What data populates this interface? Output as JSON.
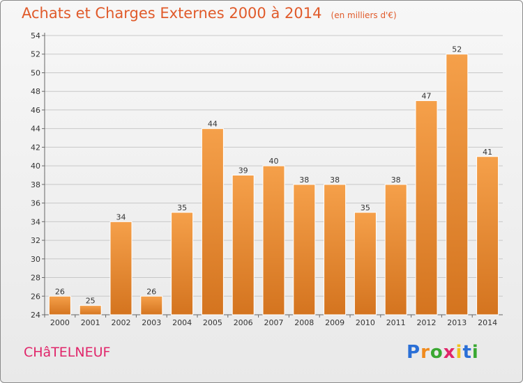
{
  "title": "Achats et Charges Externes 2000 à 2014",
  "subtitle": "(en milliers d'€)",
  "place": "CHâTELNEUF",
  "logo": {
    "letters": [
      "P",
      "r",
      "o",
      "x",
      "i",
      "t",
      "i"
    ],
    "colors": [
      "#2a6fd6",
      "#f08a1c",
      "#3aa832",
      "#e0266a",
      "#f0c21c",
      "#2a6fd6",
      "#3aa832"
    ]
  },
  "colors": {
    "accent": "#e05a2a",
    "bar_top": "#f5a04a",
    "bar_bottom": "#d4741f",
    "place": "#e0266a"
  },
  "chart_data": {
    "type": "bar",
    "categories": [
      "2000",
      "2001",
      "2002",
      "2003",
      "2004",
      "2005",
      "2006",
      "2007",
      "2008",
      "2009",
      "2010",
      "2011",
      "2012",
      "2013",
      "2014"
    ],
    "values": [
      26,
      25,
      34,
      26,
      35,
      44,
      39,
      40,
      38,
      38,
      35,
      38,
      47,
      52,
      41
    ],
    "ylim": [
      24,
      54
    ],
    "yticks": [
      24,
      26,
      28,
      30,
      32,
      34,
      36,
      38,
      40,
      42,
      44,
      46,
      48,
      50,
      52,
      54
    ],
    "grid": true,
    "legend": "none"
  }
}
